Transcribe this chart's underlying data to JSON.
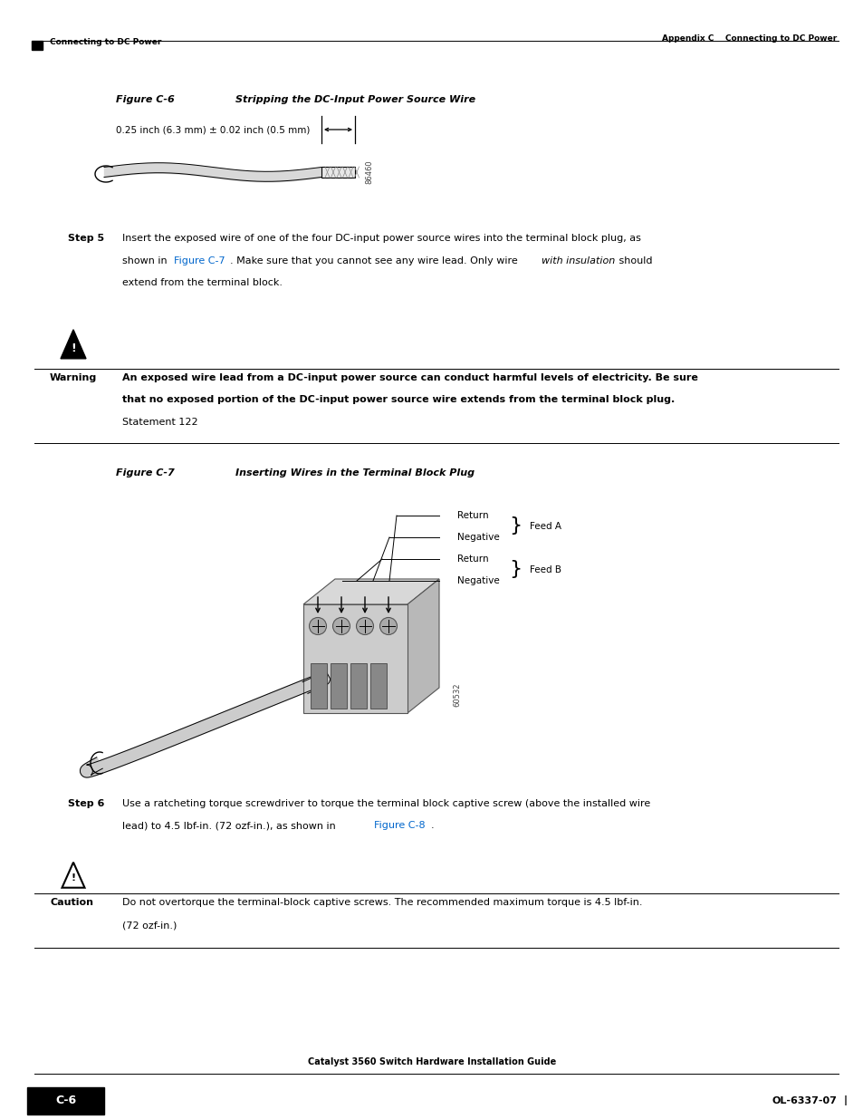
{
  "page_width": 9.54,
  "page_height": 12.35,
  "bg_color": "#ffffff",
  "top_header_right_text": "Appendix C    Connecting to DC Power",
  "bottom_footer_center_text": "Catalyst 3560 Switch Hardware Installation Guide",
  "bottom_footer_left_box_text": "C-6",
  "bottom_footer_right_text": "OL-6337-07",
  "figure_c6_title_left": "Figure C-6",
  "figure_c6_title_right": "Stripping the DC-Input Power Source Wire",
  "figure_c6_label": "0.25 inch (6.3 mm) ± 0.02 inch (0.5 mm)",
  "warning_title": "Warning",
  "warning_bold_line1": "An exposed wire lead from a DC-input power source can conduct harmful levels of electricity. Be sure",
  "warning_bold_line2": "that no exposed portion of the DC-input power source wire extends from the terminal block plug.",
  "warning_normal_text": "Statement 122",
  "figure_c7_title_left": "Figure C-7",
  "figure_c7_title_right": "Inserting Wires in the Terminal Block Plug",
  "caution_title": "Caution",
  "caution_line1": "Do not overtorque the terminal-block captive screws. The recommended maximum torque is 4.5 lbf-in.",
  "caution_line2": "(72 ozf-in.)"
}
